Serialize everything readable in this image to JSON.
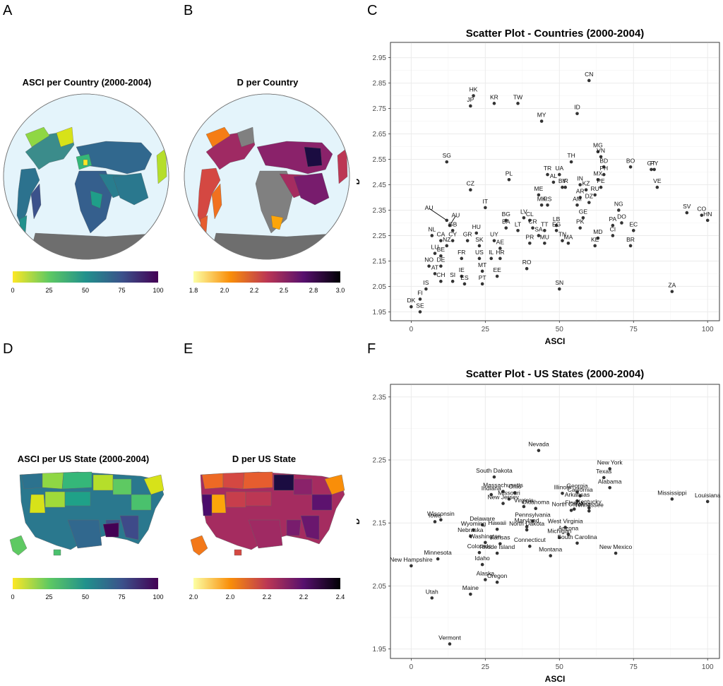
{
  "panels": {
    "A": {
      "letter": "A",
      "title": "ASCI per Country (2000-2004)",
      "colorbar": {
        "ticks": [
          "0",
          "25",
          "50",
          "75",
          "100"
        ],
        "palette": "viridis"
      }
    },
    "B": {
      "letter": "B",
      "title": "D per Country",
      "colorbar": {
        "ticks": [
          "1.8",
          "2.0",
          "2.2",
          "2.5",
          "2.8",
          "3.0"
        ],
        "palette": "inferno"
      }
    },
    "C": {
      "letter": "C"
    },
    "D": {
      "letter": "D",
      "title": "ASCI per US State (2000-2004)",
      "colorbar": {
        "ticks": [
          "0",
          "25",
          "50",
          "75",
          "100"
        ],
        "palette": "viridis"
      }
    },
    "E": {
      "letter": "E",
      "title": "D per US State",
      "colorbar": {
        "ticks": [
          "2.0",
          "2.0",
          "2.2",
          "2.2",
          "2.4"
        ],
        "palette": "inferno"
      }
    },
    "F": {
      "letter": "F"
    }
  },
  "colors": {
    "ocean": "#e4f4fb",
    "no_data": "#808080",
    "point": "#333333",
    "grid": "#ebebeb",
    "panel_border": "#333333"
  },
  "chart_data": [
    {
      "type": "scatter",
      "title": "Scatter Plot - Countries (2000-2004)",
      "xlabel": "ASCI",
      "ylabel": "D",
      "xlim": [
        -7,
        104
      ],
      "ylim": [
        1.915,
        3.01
      ],
      "xticks": [
        0,
        25,
        50,
        75,
        100
      ],
      "yticks": [
        1.95,
        2.05,
        2.15,
        2.25,
        2.35,
        2.45,
        2.55,
        2.65,
        2.75,
        2.85,
        2.95
      ],
      "grid": true,
      "points": [
        {
          "label": "CN",
          "x": 60,
          "y": 2.86
        },
        {
          "label": "HK",
          "x": 21,
          "y": 2.8
        },
        {
          "label": "KR",
          "x": 28,
          "y": 2.77
        },
        {
          "label": "JP",
          "x": 20,
          "y": 2.76
        },
        {
          "label": "TW",
          "x": 36,
          "y": 2.77
        },
        {
          "label": "ID",
          "x": 56,
          "y": 2.73
        },
        {
          "label": "MY",
          "x": 44,
          "y": 2.7
        },
        {
          "label": "MG",
          "x": 63,
          "y": 2.58
        },
        {
          "label": "TH",
          "x": 54,
          "y": 2.54
        },
        {
          "label": "VN",
          "x": 64,
          "y": 2.56
        },
        {
          "label": "BO",
          "x": 74,
          "y": 2.52
        },
        {
          "label": "GT",
          "x": 81,
          "y": 2.51
        },
        {
          "label": "BD",
          "x": 65,
          "y": 2.52
        },
        {
          "label": "SG",
          "x": 12,
          "y": 2.54
        },
        {
          "label": "UA",
          "x": 50,
          "y": 2.49
        },
        {
          "label": "TR",
          "x": 46,
          "y": 2.49
        },
        {
          "label": "PH",
          "x": 65,
          "y": 2.49
        },
        {
          "label": "PY",
          "x": 82,
          "y": 2.51
        },
        {
          "label": "IR",
          "x": 52,
          "y": 2.44
        },
        {
          "label": "MX",
          "x": 63,
          "y": 2.47
        },
        {
          "label": "PL",
          "x": 33,
          "y": 2.47
        },
        {
          "label": "AL",
          "x": 48,
          "y": 2.46
        },
        {
          "label": "BY",
          "x": 51,
          "y": 2.44
        },
        {
          "label": "IN",
          "x": 57,
          "y": 2.45
        },
        {
          "label": "PE",
          "x": 64,
          "y": 2.44
        },
        {
          "label": "KZ",
          "x": 59,
          "y": 2.43
        },
        {
          "label": "CZ",
          "x": 20,
          "y": 2.43
        },
        {
          "label": "VE",
          "x": 83,
          "y": 2.44
        },
        {
          "label": "ME",
          "x": 43,
          "y": 2.41
        },
        {
          "label": "RU",
          "x": 62,
          "y": 2.41
        },
        {
          "label": "AR",
          "x": 57,
          "y": 2.4
        },
        {
          "label": "DZ",
          "x": 60,
          "y": 2.38
        },
        {
          "label": "MK",
          "x": 44,
          "y": 2.37
        },
        {
          "label": "RS",
          "x": 46,
          "y": 2.37
        },
        {
          "label": "AM",
          "x": 56,
          "y": 2.37
        },
        {
          "label": "AU",
          "x": 12,
          "y": 2.31,
          "label_x": 6,
          "label_y": 2.36
        },
        {
          "label": "NG",
          "x": 70,
          "y": 2.35
        },
        {
          "label": "SV",
          "x": 93,
          "y": 2.34
        },
        {
          "label": "CO",
          "x": 98,
          "y": 2.33
        },
        {
          "label": "IT",
          "x": 25,
          "y": 2.36
        },
        {
          "label": "HN",
          "x": 100,
          "y": 2.31
        },
        {
          "label": "LV",
          "x": 38,
          "y": 2.32
        },
        {
          "label": "CL",
          "x": 40,
          "y": 2.31
        },
        {
          "label": "BG",
          "x": 32,
          "y": 2.31
        },
        {
          "label": "GE",
          "x": 58,
          "y": 2.32
        },
        {
          "label": "DO",
          "x": 71,
          "y": 2.3
        },
        {
          "label": "AU",
          "x": 13,
          "y": 2.29,
          "label_x": 15,
          "label_y": 2.33
        },
        {
          "label": "LB",
          "x": 49,
          "y": 2.29
        },
        {
          "label": "PA",
          "x": 68,
          "y": 2.29
        },
        {
          "label": "BA",
          "x": 32,
          "y": 2.28
        },
        {
          "label": "CR",
          "x": 41,
          "y": 2.28
        },
        {
          "label": "TT",
          "x": 45,
          "y": 2.27
        },
        {
          "label": "EG",
          "x": 49,
          "y": 2.27
        },
        {
          "label": "PK",
          "x": 57,
          "y": 2.28
        },
        {
          "label": "GB",
          "x": 14,
          "y": 2.27
        },
        {
          "label": "LT",
          "x": 36,
          "y": 2.27
        },
        {
          "label": "EC",
          "x": 75,
          "y": 2.27
        },
        {
          "label": "SA",
          "x": 43,
          "y": 2.25
        },
        {
          "label": "CI",
          "x": 68,
          "y": 2.25
        },
        {
          "label": "NL",
          "x": 7,
          "y": 2.25
        },
        {
          "label": "HU",
          "x": 22,
          "y": 2.26
        },
        {
          "label": "MD",
          "x": 63,
          "y": 2.24
        },
        {
          "label": "CA",
          "x": 10,
          "y": 2.23
        },
        {
          "label": "CY",
          "x": 14,
          "y": 2.23
        },
        {
          "label": "GR",
          "x": 19,
          "y": 2.23
        },
        {
          "label": "UY",
          "x": 28,
          "y": 2.23
        },
        {
          "label": "TN",
          "x": 51,
          "y": 2.23
        },
        {
          "label": "MU",
          "x": 45,
          "y": 2.22
        },
        {
          "label": "PR",
          "x": 40,
          "y": 2.22
        },
        {
          "label": "MA",
          "x": 53,
          "y": 2.22
        },
        {
          "label": "NZ",
          "x": 12,
          "y": 2.21
        },
        {
          "label": "KE",
          "x": 62,
          "y": 2.21
        },
        {
          "label": "BR",
          "x": 74,
          "y": 2.21
        },
        {
          "label": "SK",
          "x": 23,
          "y": 2.21
        },
        {
          "label": "AE",
          "x": 30,
          "y": 2.2
        },
        {
          "label": "LU",
          "x": 8,
          "y": 2.18
        },
        {
          "label": "BE",
          "x": 10,
          "y": 2.17
        },
        {
          "label": "FR",
          "x": 17,
          "y": 2.16
        },
        {
          "label": "US",
          "x": 23,
          "y": 2.16
        },
        {
          "label": "IL",
          "x": 27,
          "y": 2.16
        },
        {
          "label": "HR",
          "x": 30,
          "y": 2.16
        },
        {
          "label": "RO",
          "x": 39,
          "y": 2.12
        },
        {
          "label": "NO",
          "x": 6,
          "y": 2.13
        },
        {
          "label": "DE",
          "x": 10,
          "y": 2.13
        },
        {
          "label": "MT",
          "x": 24,
          "y": 2.11
        },
        {
          "label": "AT",
          "x": 8,
          "y": 2.1
        },
        {
          "label": "IE",
          "x": 17,
          "y": 2.09
        },
        {
          "label": "EE",
          "x": 29,
          "y": 2.09
        },
        {
          "label": "CH",
          "x": 10,
          "y": 2.07
        },
        {
          "label": "SI",
          "x": 14,
          "y": 2.07
        },
        {
          "label": "ES",
          "x": 18,
          "y": 2.06
        },
        {
          "label": "PT",
          "x": 24,
          "y": 2.06
        },
        {
          "label": "IS",
          "x": 5,
          "y": 2.04
        },
        {
          "label": "SN",
          "x": 50,
          "y": 2.04
        },
        {
          "label": "ZA",
          "x": 88,
          "y": 2.03
        },
        {
          "label": "FI",
          "x": 3,
          "y": 2.0
        },
        {
          "label": "DK",
          "x": 0,
          "y": 1.97
        },
        {
          "label": "SE",
          "x": 3,
          "y": 1.95
        }
      ]
    },
    {
      "type": "scatter",
      "title": "Scatter Plot - US States (2000-2004)",
      "xlabel": "ASCI",
      "ylabel": "D",
      "xlim": [
        -7,
        104
      ],
      "ylim": [
        1.935,
        2.37
      ],
      "xticks": [
        0,
        25,
        50,
        75,
        100
      ],
      "yticks": [
        1.95,
        2.05,
        2.15,
        2.25,
        2.35
      ],
      "grid": true,
      "points": [
        {
          "label": "Nevada",
          "x": 43,
          "y": 2.265
        },
        {
          "label": "New York",
          "x": 67,
          "y": 2.236
        },
        {
          "label": "South Dakota",
          "x": 28,
          "y": 2.223
        },
        {
          "label": "Texas",
          "x": 65,
          "y": 2.222
        },
        {
          "label": "Massachusetts",
          "x": 31,
          "y": 2.2
        },
        {
          "label": "Ohio",
          "x": 35,
          "y": 2.198
        },
        {
          "label": "Alabama",
          "x": 67,
          "y": 2.206
        },
        {
          "label": "Illinois",
          "x": 51,
          "y": 2.197
        },
        {
          "label": "Georgia",
          "x": 56,
          "y": 2.199
        },
        {
          "label": "Indiana",
          "x": 27,
          "y": 2.195
        },
        {
          "label": "California",
          "x": 57,
          "y": 2.193
        },
        {
          "label": "Missouri",
          "x": 33,
          "y": 2.188
        },
        {
          "label": "Louisiana",
          "x": 100,
          "y": 2.184
        },
        {
          "label": "Mississippi",
          "x": 88,
          "y": 2.188
        },
        {
          "label": "Arkansas",
          "x": 56,
          "y": 2.185
        },
        {
          "label": "New Jersey",
          "x": 31,
          "y": 2.181
        },
        {
          "label": "Oklahoma",
          "x": 42,
          "y": 2.173
        },
        {
          "label": "Kentucky",
          "x": 60,
          "y": 2.174
        },
        {
          "label": "Florida",
          "x": 55,
          "y": 2.172
        },
        {
          "label": "Virginia",
          "x": 38,
          "y": 2.176
        },
        {
          "label": "North Carolina",
          "x": 54,
          "y": 2.17
        },
        {
          "label": "Tennessee",
          "x": 60,
          "y": 2.169
        },
        {
          "label": "Wisconsin",
          "x": 10,
          "y": 2.155
        },
        {
          "label": "Iowa",
          "x": 8,
          "y": 2.152
        },
        {
          "label": "Pennsylvania",
          "x": 41,
          "y": 2.153
        },
        {
          "label": "Delaware",
          "x": 24,
          "y": 2.147
        },
        {
          "label": "Maryland",
          "x": 39,
          "y": 2.144
        },
        {
          "label": "West Virginia",
          "x": 52,
          "y": 2.143
        },
        {
          "label": "Wyoming",
          "x": 21,
          "y": 2.139
        },
        {
          "label": "Hawaii",
          "x": 29,
          "y": 2.14
        },
        {
          "label": "North Dakota",
          "x": 39,
          "y": 2.139
        },
        {
          "label": "Arizona",
          "x": 53,
          "y": 2.132
        },
        {
          "label": "Nebraska",
          "x": 20,
          "y": 2.129
        },
        {
          "label": "Michigan",
          "x": 50,
          "y": 2.127
        },
        {
          "label": "Washington",
          "x": 25,
          "y": 2.119
        },
        {
          "label": "South Carolina",
          "x": 56,
          "y": 2.118
        },
        {
          "label": "Kansas",
          "x": 30,
          "y": 2.117
        },
        {
          "label": "Connecticut",
          "x": 40,
          "y": 2.113
        },
        {
          "label": "Minnesota",
          "x": 9,
          "y": 2.093
        },
        {
          "label": "Colorado",
          "x": 23,
          "y": 2.103
        },
        {
          "label": "Rhode Island",
          "x": 29,
          "y": 2.102
        },
        {
          "label": "Montana",
          "x": 47,
          "y": 2.098
        },
        {
          "label": "New Mexico",
          "x": 69,
          "y": 2.102
        },
        {
          "label": "Idaho",
          "x": 24,
          "y": 2.084
        },
        {
          "label": "New Hampshire",
          "x": 0,
          "y": 2.082
        },
        {
          "label": "Alaska",
          "x": 25,
          "y": 2.06
        },
        {
          "label": "Oregon",
          "x": 29,
          "y": 2.056
        },
        {
          "label": "Maine",
          "x": 20,
          "y": 2.037
        },
        {
          "label": "Utah",
          "x": 7,
          "y": 2.031
        },
        {
          "label": "Vermont",
          "x": 13,
          "y": 1.958
        }
      ]
    }
  ]
}
